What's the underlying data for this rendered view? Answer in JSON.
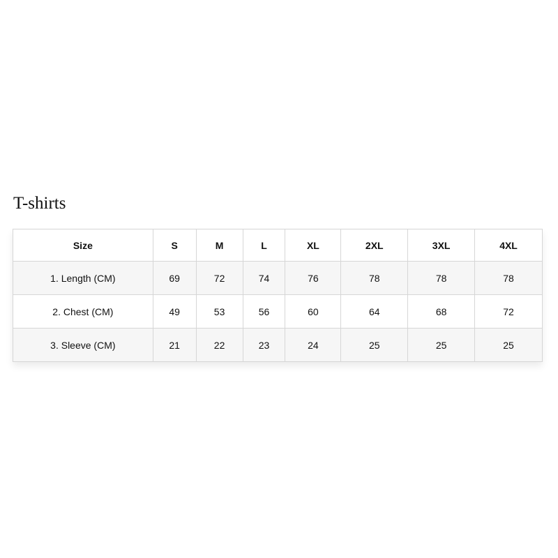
{
  "title": "T-shirts",
  "table": {
    "headers": [
      "Size",
      "S",
      "M",
      "L",
      "XL",
      "2XL",
      "3XL",
      "4XL"
    ],
    "rows": [
      [
        "1. Length (CM)",
        "69",
        "72",
        "74",
        "76",
        "78",
        "78",
        "78"
      ],
      [
        "2. Chest (CM)",
        "49",
        "53",
        "56",
        "60",
        "64",
        "68",
        "72"
      ],
      [
        "3. Sleeve (CM)",
        "21",
        "22",
        "23",
        "24",
        "25",
        "25",
        "25"
      ]
    ]
  }
}
